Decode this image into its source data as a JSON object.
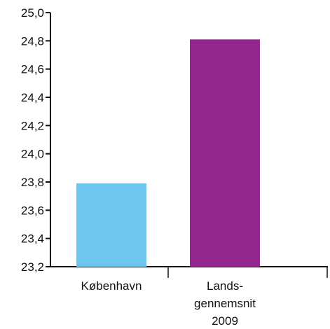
{
  "chart_data": {
    "type": "bar",
    "categories": [
      [
        "København"
      ],
      [
        "Lands-",
        "gennemsnit",
        "2009"
      ]
    ],
    "values": [
      23.79,
      24.81
    ],
    "colors": [
      "#6EC6EE",
      "#92278F"
    ],
    "ylim": [
      23.2,
      25.0
    ],
    "yticks": [
      "23,2",
      "23,4",
      "23,6",
      "23,8",
      "24,0",
      "24,2",
      "24,4",
      "24,6",
      "24,8",
      "25,0"
    ],
    "title": "",
    "xlabel": "",
    "ylabel": "",
    "grid": false,
    "legend": "none"
  }
}
